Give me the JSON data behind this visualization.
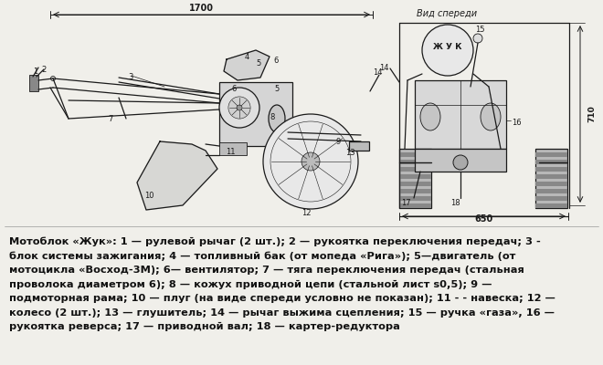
{
  "bg_color": "#e8e8e4",
  "image_bg": "#f0efea",
  "diagram_color": "#1a1a1a",
  "text_color": "#111111",
  "desc_lines": [
    "Мотоблок «Жук»: 1 — рулевой рычаг (2 шт.); 2 — рукоятка переключения передач; 3 -",
    "блок системы зажигания; 4 — топливный бак (от мопеда «Рига»); 5—двигатель (от",
    "мотоцикла «Восход-3М); 6— вентилятор; 7 — тяга переключения передач (стальная",
    "проволока диаметром 6); 8 — кожух приводной цепи (стальной лист s0,5); 9 —",
    "подмоторная рама; 10 — плуг (на виде спереди условно не показан); 11 - - навеска; 12 —",
    "колесо (2 шт.); 13 — глушитель; 14 — рычаг выжима сцепления; 15 — ручка «газа», 16 —",
    "рукоятка реверса; 17 — приводной вал; 18 — картер-редуктора"
  ],
  "desc_fontsize": 8.2,
  "vspereди_label": "Вид спереди",
  "dim_1700": "1700",
  "dim_650": "650",
  "dim_710": "710"
}
